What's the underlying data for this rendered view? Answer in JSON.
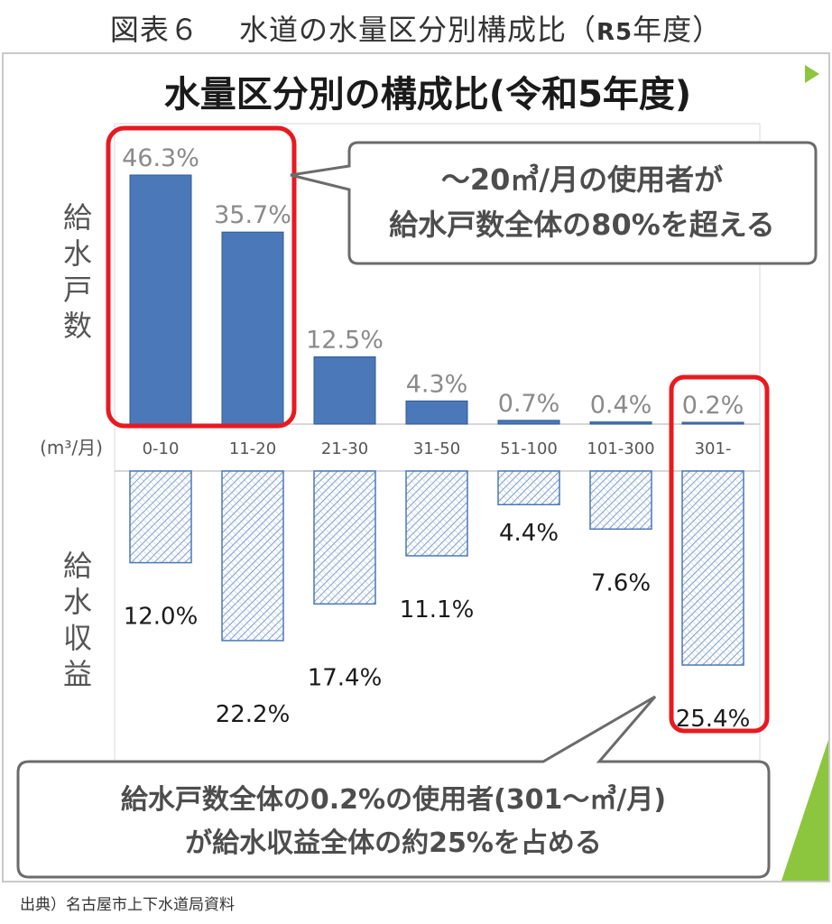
{
  "figure_caption": {
    "prefix": "図表６　 水道の水量区分別構成比（",
    "sub": "R5",
    "suffix": "年度）"
  },
  "source_note": "出典）名古屋市上下水道局資料",
  "colors": {
    "households_bar": "#4a78b8",
    "households_bar_edge": "#2f5a96",
    "revenue_bar_edge": "#4a78b8",
    "highlight": "#e8191f",
    "callout_border": "#6b6b6b",
    "accent_green": "#8cc63e"
  },
  "chart_data": {
    "type": "bar",
    "title": "水量区分別の構成比(令和5年度)",
    "x_unit_label": "(m³/月)",
    "categories": [
      "0-10",
      "11-20",
      "21-30",
      "31-50",
      "51-100",
      "101-300",
      "301-"
    ],
    "series": [
      {
        "name": "給水戸数",
        "values": [
          46.3,
          35.7,
          12.5,
          4.3,
          0.7,
          0.4,
          0.2
        ],
        "labels": [
          "46.3%",
          "35.7%",
          "12.5%",
          "4.3%",
          "0.7%",
          "0.4%",
          "0.2%"
        ],
        "direction": "up"
      },
      {
        "name": "給水収益",
        "values": [
          12.0,
          22.2,
          17.4,
          11.1,
          4.4,
          7.6,
          25.4
        ],
        "labels": [
          "12.0%",
          "22.2%",
          "17.4%",
          "11.1%",
          "4.4%",
          "7.6%",
          "25.4%"
        ],
        "direction": "down"
      }
    ],
    "ylim": [
      0,
      50
    ],
    "annotations": [
      {
        "id": "callout-top",
        "lines": [
          "～20㎥/月の使用者が",
          "給水戸数全体の80%を超える"
        ]
      },
      {
        "id": "callout-bottom",
        "lines": [
          "給水戸数全体の0.2%の使用者(301～㎥/月)",
          "が給水収益全体の約25%を占める"
        ]
      }
    ]
  }
}
